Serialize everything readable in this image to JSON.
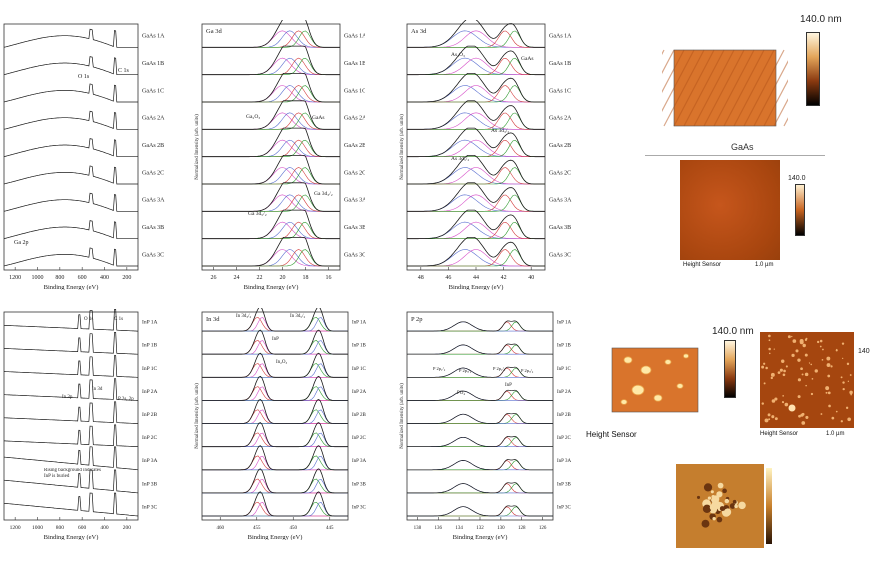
{
  "colors": {
    "spectrum": "#1a1a1a",
    "comp_green": "#2e9a2e",
    "comp_red": "#d23a3a",
    "comp_blue": "#5a6fd0",
    "comp_magenta": "#d64fc8",
    "comp_orange": "#e08a30",
    "afm_surface": "#d9742c",
    "afm_dark": "#b4531a"
  },
  "top": {
    "survey": {
      "xlabel": "Binding Energy (eV)",
      "ticks": [
        "1200",
        "1000",
        "800",
        "600",
        "400",
        "200"
      ],
      "samples": [
        "GaAs 1A",
        "GaAs 1B",
        "GaAs 1C",
        "GaAs 2A",
        "GaAs 2B",
        "GaAs 2C",
        "GaAs 3A",
        "GaAs 3B",
        "GaAs 3C"
      ],
      "annotations": {
        "o1s": "O 1s",
        "c1s": "C 1s",
        "ga2p": "Ga 2p"
      }
    },
    "ga3d": {
      "title": "Ga 3d",
      "xlabel": "Binding Energy (eV)",
      "ylabel": "Normalized Intensity (arb. units)",
      "ticks": [
        "26",
        "24",
        "22",
        "20",
        "18",
        "16"
      ],
      "samples": [
        "GaAs 1A",
        "GaAs 1B",
        "GaAs 1C",
        "GaAs 2A",
        "GaAs 2B",
        "GaAs 2C",
        "GaAs 3A",
        "GaAs 3B",
        "GaAs 3C"
      ],
      "annotations": {
        "oxide": "Ga₂O₃",
        "gaas": "GaAs",
        "d32": "Ga 3d₃/₂",
        "d52": "Ga 3d₅/₂"
      }
    },
    "as3d": {
      "title": "As 3d",
      "xlabel": "Binding Energy (eV)",
      "ylabel": "Normalized Intensity (arb. units)",
      "ticks": [
        "48",
        "46",
        "44",
        "42",
        "40"
      ],
      "samples": [
        "GaAs 1A",
        "GaAs 1B",
        "GaAs 1C",
        "GaAs 2A",
        "GaAs 2B",
        "GaAs 2C",
        "GaAs 3A",
        "GaAs 3B",
        "GaAs 3C"
      ],
      "annotations": {
        "oxide": "As₂O₃",
        "gaas": "GaAs",
        "d32": "As 3d₃/₂",
        "d52": "As 3d₅/₂"
      }
    },
    "afm_scale": {
      "value": "140.0 nm"
    },
    "afm_gaas": {
      "title": "GaAs",
      "label": "Height Sensor",
      "scalebar": "1.0 µm",
      "colorbar": "140.0"
    }
  },
  "bottom": {
    "survey": {
      "xlabel": "Binding Energy (eV)",
      "ticks": [
        "1200",
        "1000",
        "800",
        "600",
        "400",
        "200"
      ],
      "samples": [
        "InP 1A",
        "InP 1B",
        "InP 1C",
        "InP 2A",
        "InP 2B",
        "InP 2C",
        "InP 3A",
        "InP 3B",
        "InP 3C"
      ],
      "annotations": {
        "o1s": "O 1s",
        "c1s": "C 1s",
        "in3p": "In 3p",
        "in3d": "In 3d",
        "p2s": "P 2s, 2p",
        "note": "Rising background indicates InP is buried"
      }
    },
    "in3d": {
      "title": "In 3d",
      "xlabel": "Binding Energy (eV)",
      "ylabel": "Normalized Intensity (arb. units)",
      "ticks": [
        "460",
        "455",
        "450",
        "445"
      ],
      "samples": [
        "InP 1A",
        "InP 1B",
        "InP 1C",
        "InP 2A",
        "InP 2B",
        "InP 2C",
        "InP 3A",
        "InP 3B",
        "InP 3C"
      ],
      "annotations": {
        "d32": "In 3d₃/₂",
        "d52": "In 3d₅/₂",
        "inp": "InP",
        "oxide": "In₂O₃"
      }
    },
    "p2p": {
      "title": "P 2p",
      "xlabel": "Binding Energy (eV)",
      "ylabel": "Normalized Intensity (arb. units)",
      "ticks": [
        "138",
        "136",
        "134",
        "132",
        "130",
        "128",
        "126"
      ],
      "samples": [
        "InP 1A",
        "InP 1B",
        "InP 1C",
        "InP 2A",
        "InP 2B",
        "InP 2C",
        "InP 3A",
        "InP 3B",
        "InP 3C"
      ],
      "annotations": {
        "p12a": "P 2p₁/₂",
        "p32a": "P 2p₃/₂",
        "p12b": "P 2p₁/₂",
        "p32b": "P 2p₃/₂",
        "po4": "PO₄",
        "inp": "InP"
      }
    },
    "afm_scale": {
      "value": "140.0 nm"
    },
    "afm_label": "Height Sensor",
    "afm_right": {
      "label": "Height Sensor",
      "scalebar": "1.0 µm",
      "colorbar": "140"
    }
  }
}
